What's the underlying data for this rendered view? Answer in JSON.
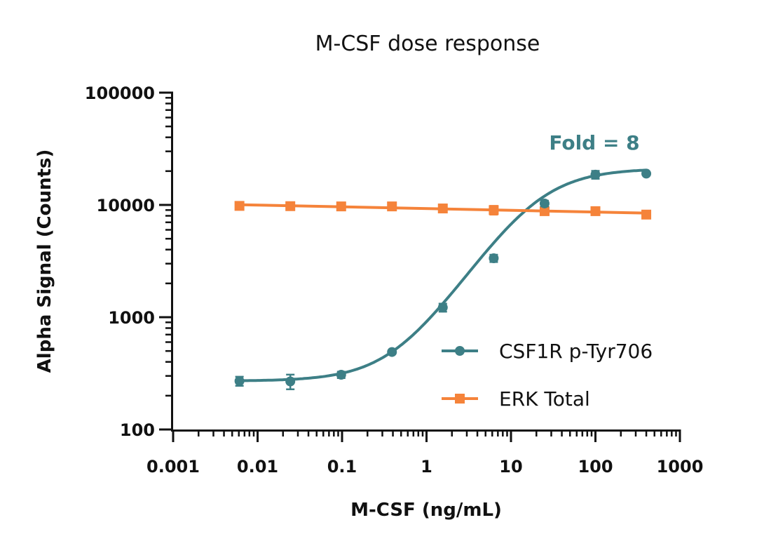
{
  "chart_data": {
    "type": "scatter",
    "title": "M-CSF dose response",
    "xlabel": "M-CSF (ng/mL)",
    "ylabel": "Alpha Signal (Counts)",
    "xscale": "log",
    "yscale": "log",
    "xlim": [
      0.001,
      1000
    ],
    "ylim": [
      100,
      100000
    ],
    "xticks": [
      "0.001",
      "0.01",
      "0.1",
      "1",
      "10",
      "100",
      "1000"
    ],
    "yticks": [
      "100",
      "1000",
      "10000",
      "100000"
    ],
    "grid": false,
    "legend_position": "bottom-right",
    "annotation": "Fold = 8",
    "x": [
      0.0061,
      0.0244,
      0.0977,
      0.39,
      1.56,
      6.25,
      25,
      100,
      400
    ],
    "series": [
      {
        "name": "CSF1R p-Tyr706",
        "color": "#3d7f86",
        "marker": "circle",
        "fit": "sigmoidal",
        "values": [
          270,
          268,
          307,
          490,
          1220,
          3350,
          10300,
          18600,
          19000
        ],
        "errors": [
          25,
          40,
          20,
          15,
          100,
          250,
          600,
          1500,
          500
        ]
      },
      {
        "name": "ERK Total",
        "color": "#f5833a",
        "marker": "square",
        "fit": "linear",
        "values": [
          9800,
          9750,
          9700,
          9700,
          9300,
          9000,
          8800,
          8800,
          8200
        ],
        "errors": [
          300,
          300,
          300,
          400,
          400,
          800,
          500,
          400,
          400
        ]
      }
    ]
  }
}
